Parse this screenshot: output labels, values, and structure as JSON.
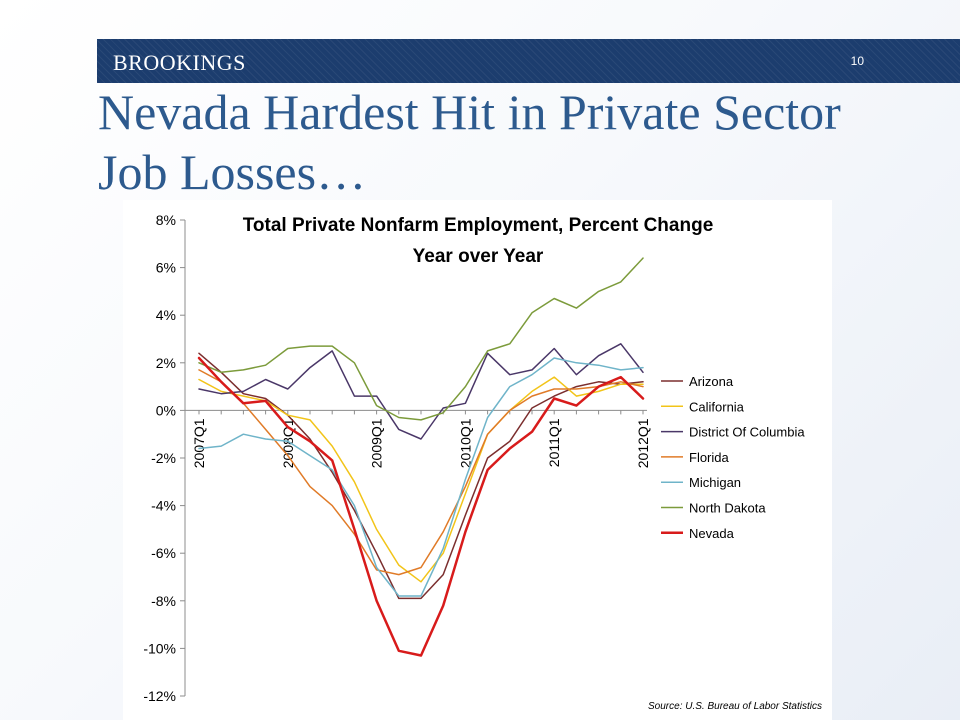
{
  "header": {
    "brand": "BROOKINGS",
    "slide_number": "10",
    "title": "Nevada Hardest Hit in Private Sector Job Losses…"
  },
  "source_note": "Source:  U.S.  Bureau of Labor Statistics",
  "colors": {
    "banner": "#1c3d6e",
    "title": "#2d5a8e"
  },
  "chart_data": {
    "type": "line",
    "title": "Total Private Nonfarm Employment, Percent Change Year over Year",
    "title_lines": [
      "Total Private Nonfarm Employment, Percent Change",
      "Year over Year"
    ],
    "xlabel": "",
    "ylabel": "",
    "ylim": [
      -12,
      8
    ],
    "y_ticks": [
      8,
      6,
      4,
      2,
      0,
      -2,
      -4,
      -6,
      -8,
      -10,
      -12
    ],
    "y_tick_labels": [
      "8%",
      "6%",
      "4%",
      "2%",
      "0%",
      "-2%",
      "-4%",
      "-6%",
      "-8%",
      "-10%",
      "-12%"
    ],
    "x": [
      "2007Q1",
      "2007Q2",
      "2007Q3",
      "2007Q4",
      "2008Q1",
      "2008Q2",
      "2008Q3",
      "2008Q4",
      "2009Q1",
      "2009Q2",
      "2009Q3",
      "2009Q4",
      "2010Q1",
      "2010Q2",
      "2010Q3",
      "2010Q4",
      "2011Q1",
      "2011Q2",
      "2011Q3",
      "2011Q4",
      "2012Q1"
    ],
    "x_tick_labels": [
      "2007Q1",
      "2008Q1",
      "2009Q1",
      "2010Q1",
      "2011Q1",
      "2012Q1"
    ],
    "x_tick_indices": [
      0,
      4,
      8,
      12,
      16,
      20
    ],
    "grid": false,
    "legend_position": "right",
    "series": [
      {
        "name": "Arizona",
        "color": "#7b2e2e",
        "width": 1.5,
        "values": [
          2.4,
          1.6,
          0.7,
          0.5,
          -0.2,
          -1.2,
          -2.6,
          -4.2,
          -6.0,
          -7.9,
          -7.9,
          -6.9,
          -4.4,
          -2.0,
          -1.3,
          0.1,
          0.6,
          1.0,
          1.2,
          1.1,
          1.2
        ]
      },
      {
        "name": "California",
        "color": "#f2c419",
        "width": 1.5,
        "values": [
          1.3,
          0.8,
          0.6,
          0.4,
          -0.2,
          -0.4,
          -1.5,
          -3.0,
          -5.0,
          -6.5,
          -7.2,
          -6.0,
          -3.5,
          -1.0,
          0.0,
          0.8,
          1.4,
          0.6,
          0.8,
          1.1,
          1.1
        ]
      },
      {
        "name": "District Of Columbia",
        "color": "#4a3768",
        "width": 1.5,
        "values": [
          0.9,
          0.7,
          0.8,
          1.3,
          0.9,
          1.8,
          2.5,
          0.6,
          0.6,
          -0.8,
          -1.2,
          0.1,
          0.3,
          2.4,
          1.5,
          1.7,
          2.6,
          1.5,
          2.3,
          2.8,
          1.6
        ]
      },
      {
        "name": "Florida",
        "color": "#e07b28",
        "width": 1.5,
        "values": [
          1.7,
          1.2,
          0.3,
          -0.8,
          -1.9,
          -3.2,
          -4.0,
          -5.2,
          -6.7,
          -6.9,
          -6.6,
          -5.1,
          -3.2,
          -1.0,
          0.0,
          0.6,
          0.9,
          0.9,
          1.0,
          1.2,
          1.0
        ]
      },
      {
        "name": "Michigan",
        "color": "#6fb4c9",
        "width": 1.5,
        "values": [
          -1.6,
          -1.5,
          -1.0,
          -1.2,
          -1.3,
          -1.9,
          -2.5,
          -4.0,
          -6.6,
          -7.8,
          -7.8,
          -5.8,
          -2.9,
          -0.3,
          1.0,
          1.5,
          2.2,
          2.0,
          1.9,
          1.7,
          1.8
        ]
      },
      {
        "name": "North Dakota",
        "color": "#7c9b3b",
        "width": 1.5,
        "values": [
          2.0,
          1.6,
          1.7,
          1.9,
          2.6,
          2.7,
          2.7,
          2.0,
          0.2,
          -0.3,
          -0.4,
          -0.1,
          1.0,
          2.5,
          2.8,
          4.1,
          4.7,
          4.3,
          5.0,
          5.4,
          6.4
        ]
      },
      {
        "name": "Nevada",
        "color": "#d81b1b",
        "width": 2.5,
        "values": [
          2.2,
          1.2,
          0.3,
          0.4,
          -0.7,
          -1.3,
          -2.1,
          -5.0,
          -8.0,
          -10.1,
          -10.3,
          -8.2,
          -5.1,
          -2.5,
          -1.6,
          -0.9,
          0.5,
          0.2,
          1.0,
          1.4,
          0.5
        ]
      }
    ]
  }
}
